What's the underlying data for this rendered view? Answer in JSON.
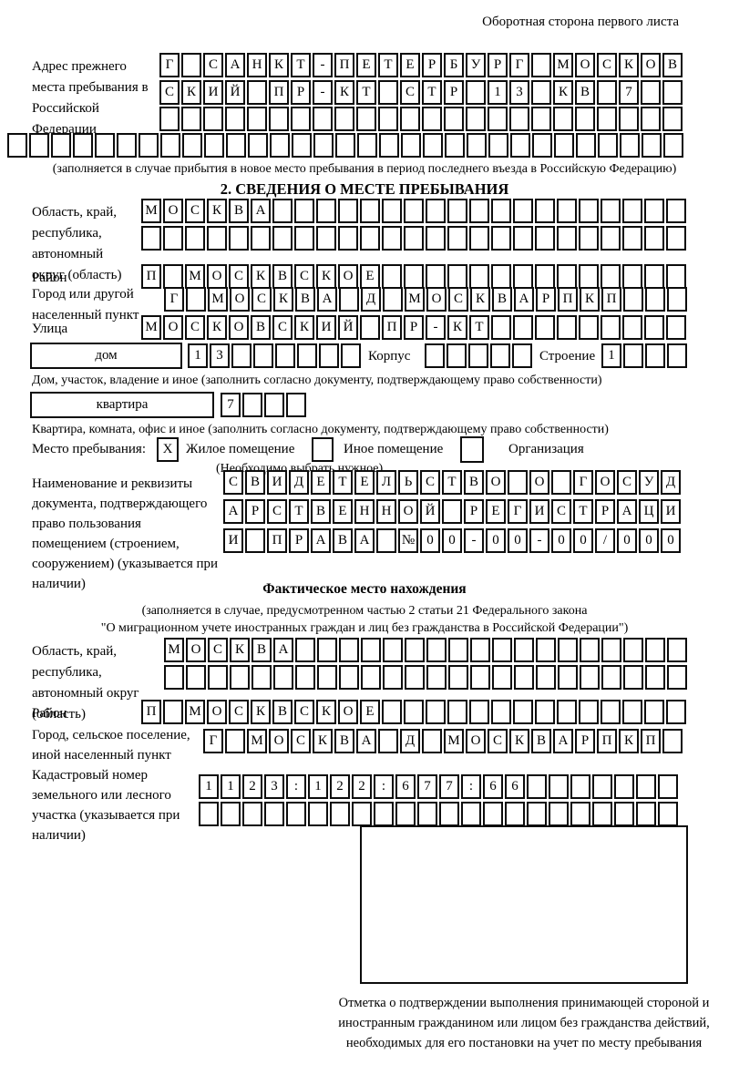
{
  "header": {
    "note": "Оборотная сторона первого листа"
  },
  "prev_address": {
    "label": "Адрес прежнего места пребывания в Российской Федерации",
    "rows": [
      {
        "chars": "Г САНКТ-ПЕТЕРБУРГ МОСКОВ",
        "count": 24
      },
      {
        "chars": "СКИЙ ПР-КТ СТР 13 КВ 7",
        "count": 24
      },
      {
        "chars": "",
        "count": 24
      },
      {
        "chars": "",
        "count": 31
      }
    ],
    "footnote": "(заполняется в случае прибытия в новое место пребывания в период последнего въезда в Российскую Федерацию)"
  },
  "section2": {
    "title": "2. СВЕДЕНИЯ О МЕСТЕ ПРЕБЫВАНИЯ",
    "region": {
      "label": "Область, край, республика, автономный округ (область)",
      "rows": [
        {
          "chars": "МОСКВА",
          "count": 25
        },
        {
          "chars": "",
          "count": 25
        }
      ]
    },
    "district": {
      "label": "Район",
      "row": {
        "chars": "П МОСКВСКОЕ",
        "count": 25
      }
    },
    "city": {
      "label": "Город или другой населенный пункт",
      "row": {
        "chars": "Г МОСКВА Д МОСКВАРПКП",
        "count": 24
      }
    },
    "street": {
      "label": "Улица",
      "row": {
        "chars": "МОСКОВСКИЙ ПР-КТ",
        "count": 25
      }
    },
    "house": {
      "box_label": "дом",
      "cells": {
        "chars": "13",
        "count": 8
      },
      "korpus_label": "Корпус",
      "korpus_cells": {
        "chars": "",
        "count": 5
      },
      "stroenie_label": "Строение",
      "stroenie_cells": {
        "chars": "1",
        "count": 4
      }
    },
    "house_note": "Дом, участок, владение и иное (заполнить согласно документу, подтверждающему право собственности)",
    "apartment": {
      "box_label": "квартира",
      "cells": {
        "chars": "7",
        "count": 4
      }
    },
    "apartment_note": "Квартира, комната, офис и иное (заполнить согласно документу, подтверждающему право собственности)",
    "stay_place": {
      "label": "Место пребывания:",
      "options": [
        {
          "label": "Жилое помещение",
          "checked": "X"
        },
        {
          "label": "Иное помещение",
          "checked": ""
        },
        {
          "label": "Организация",
          "checked": ""
        }
      ],
      "note": "(Необходимо выбрать нужное)"
    },
    "document": {
      "label": "Наименование и реквизиты документа, подтверждающего право пользования помещением (строением, сооружением) (указывается при наличии)",
      "rows": [
        {
          "chars": "СВИДЕТЕЛЬСТВО О ГОСУД",
          "count": 21
        },
        {
          "chars": "АРСТВЕННОЙ РЕГИСТРАЦИ",
          "count": 21
        },
        {
          "chars": "И ПРАВА №00-00-00/000",
          "count": 21
        }
      ]
    }
  },
  "actual_location": {
    "title": "Фактическое место нахождения",
    "note_line1": "(заполняется в случае, предусмотренном частью 2 статьи 21 Федерального закона",
    "note_line2": "\"О миграционном учете иностранных граждан и лиц без гражданства в Российской Федерации\")",
    "region": {
      "label": "Область, край, республика, автономный округ (область)",
      "rows": [
        {
          "chars": "МОСКВА",
          "count": 24
        },
        {
          "chars": "",
          "count": 24
        }
      ]
    },
    "district": {
      "label": "Район",
      "row": {
        "chars": "П МОСКВСКОЕ",
        "count": 25
      }
    },
    "city": {
      "label": "Город, сельское поселение, иной населенный пункт",
      "row": {
        "chars": "Г МОСКВА Д МОСКВАРПКП ",
        "count": 22
      }
    },
    "cadastre": {
      "label": "Кадастровый номер земельного или лесного участка (указывается при наличии)",
      "rows": [
        {
          "chars": "1123:122:677:66",
          "count": 22
        },
        {
          "chars": "",
          "count": 22
        }
      ]
    },
    "stamp_caption": "Отметка о подтверждении выполнения принимающей стороной и иностранным гражданином или лицом без гражданства действий, необходимых для его постановки на учет по месту пребывания"
  }
}
